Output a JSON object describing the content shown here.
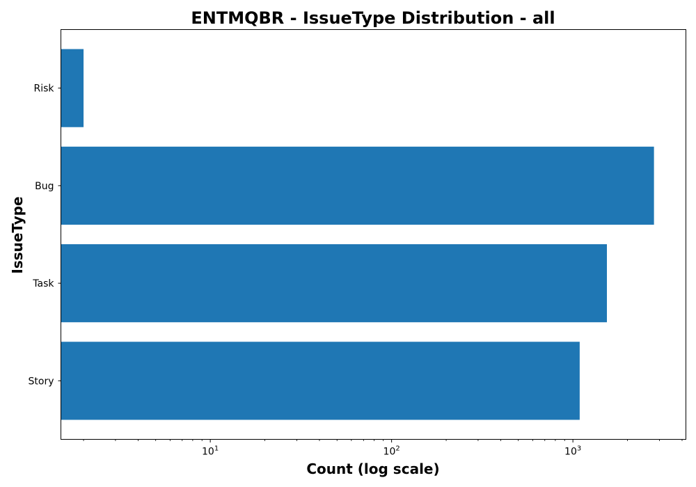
{
  "chart_data": {
    "type": "bar",
    "orientation": "horizontal",
    "title": "ENTMQBR - IssueType Distribution - all",
    "xlabel": "Count (log scale)",
    "ylabel": "IssueType",
    "x_scale": "log",
    "xlim": [
      1.5,
      4200
    ],
    "x_ticks": [
      {
        "base": "10",
        "exp": "1",
        "value": 10
      },
      {
        "base": "10",
        "exp": "2",
        "value": 100
      },
      {
        "base": "10",
        "exp": "3",
        "value": 1000
      }
    ],
    "categories": [
      "Risk",
      "Bug",
      "Task",
      "Story"
    ],
    "values": [
      2,
      2800,
      1540,
      1090
    ],
    "bar_color": "#1f77b4",
    "grid": false,
    "legend": "none"
  }
}
